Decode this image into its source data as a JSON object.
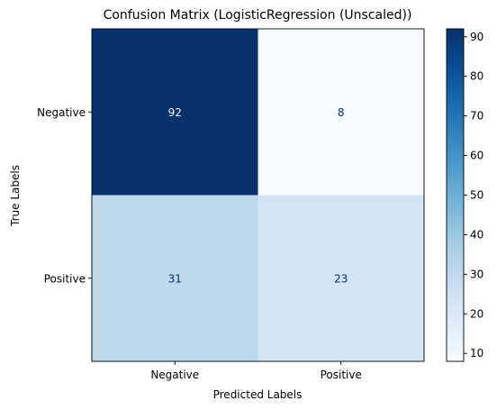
{
  "chart_data": {
    "type": "heatmap",
    "title": "Confusion Matrix (LogisticRegression (Unscaled))",
    "xlabel": "Predicted Labels",
    "ylabel": "True Labels",
    "x_categories": [
      "Negative",
      "Positive"
    ],
    "y_categories": [
      "Negative",
      "Positive"
    ],
    "values": [
      [
        92,
        8
      ],
      [
        31,
        23
      ]
    ],
    "colormap": "Blues",
    "colorbar": {
      "min": 8,
      "max": 92,
      "ticks": [
        10,
        20,
        30,
        40,
        50,
        60,
        70,
        80,
        90
      ],
      "placement": "right"
    },
    "colors": {
      "min": "#f7fbff",
      "max": "#08306b",
      "text_on_dark": "#f7fbff",
      "text_on_light": "#08306b"
    }
  }
}
